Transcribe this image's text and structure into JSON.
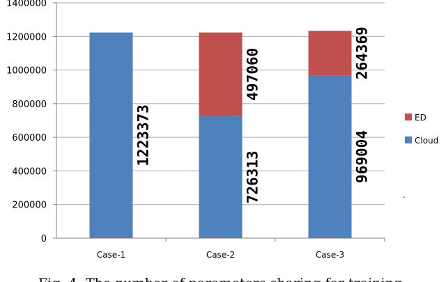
{
  "chart_data": {
    "type": "bar",
    "stacked": true,
    "categories": [
      "Case-1",
      "Case-2",
      "Case-3"
    ],
    "series": [
      {
        "name": "Cloud",
        "values": [
          1223373,
          726313,
          969004
        ],
        "color": "#4f81bd"
      },
      {
        "name": "ED",
        "values": [
          0,
          497060,
          264369
        ],
        "color": "#c0504d"
      }
    ],
    "data_labels": [
      [
        "1223373",
        "726313",
        "969004"
      ],
      [
        "",
        "497060",
        "264369"
      ]
    ],
    "yticks": [
      "0",
      "200000",
      "400000",
      "600000",
      "800000",
      "1000000",
      "1200000",
      "1400000"
    ],
    "ylim": [
      0,
      1400000
    ],
    "legend_position": "right",
    "legend_order": [
      "ED",
      "Cloud"
    ],
    "grid": true,
    "trailing_mark": "."
  },
  "caption": "Fig. 4: The number of parameters sharing for training"
}
